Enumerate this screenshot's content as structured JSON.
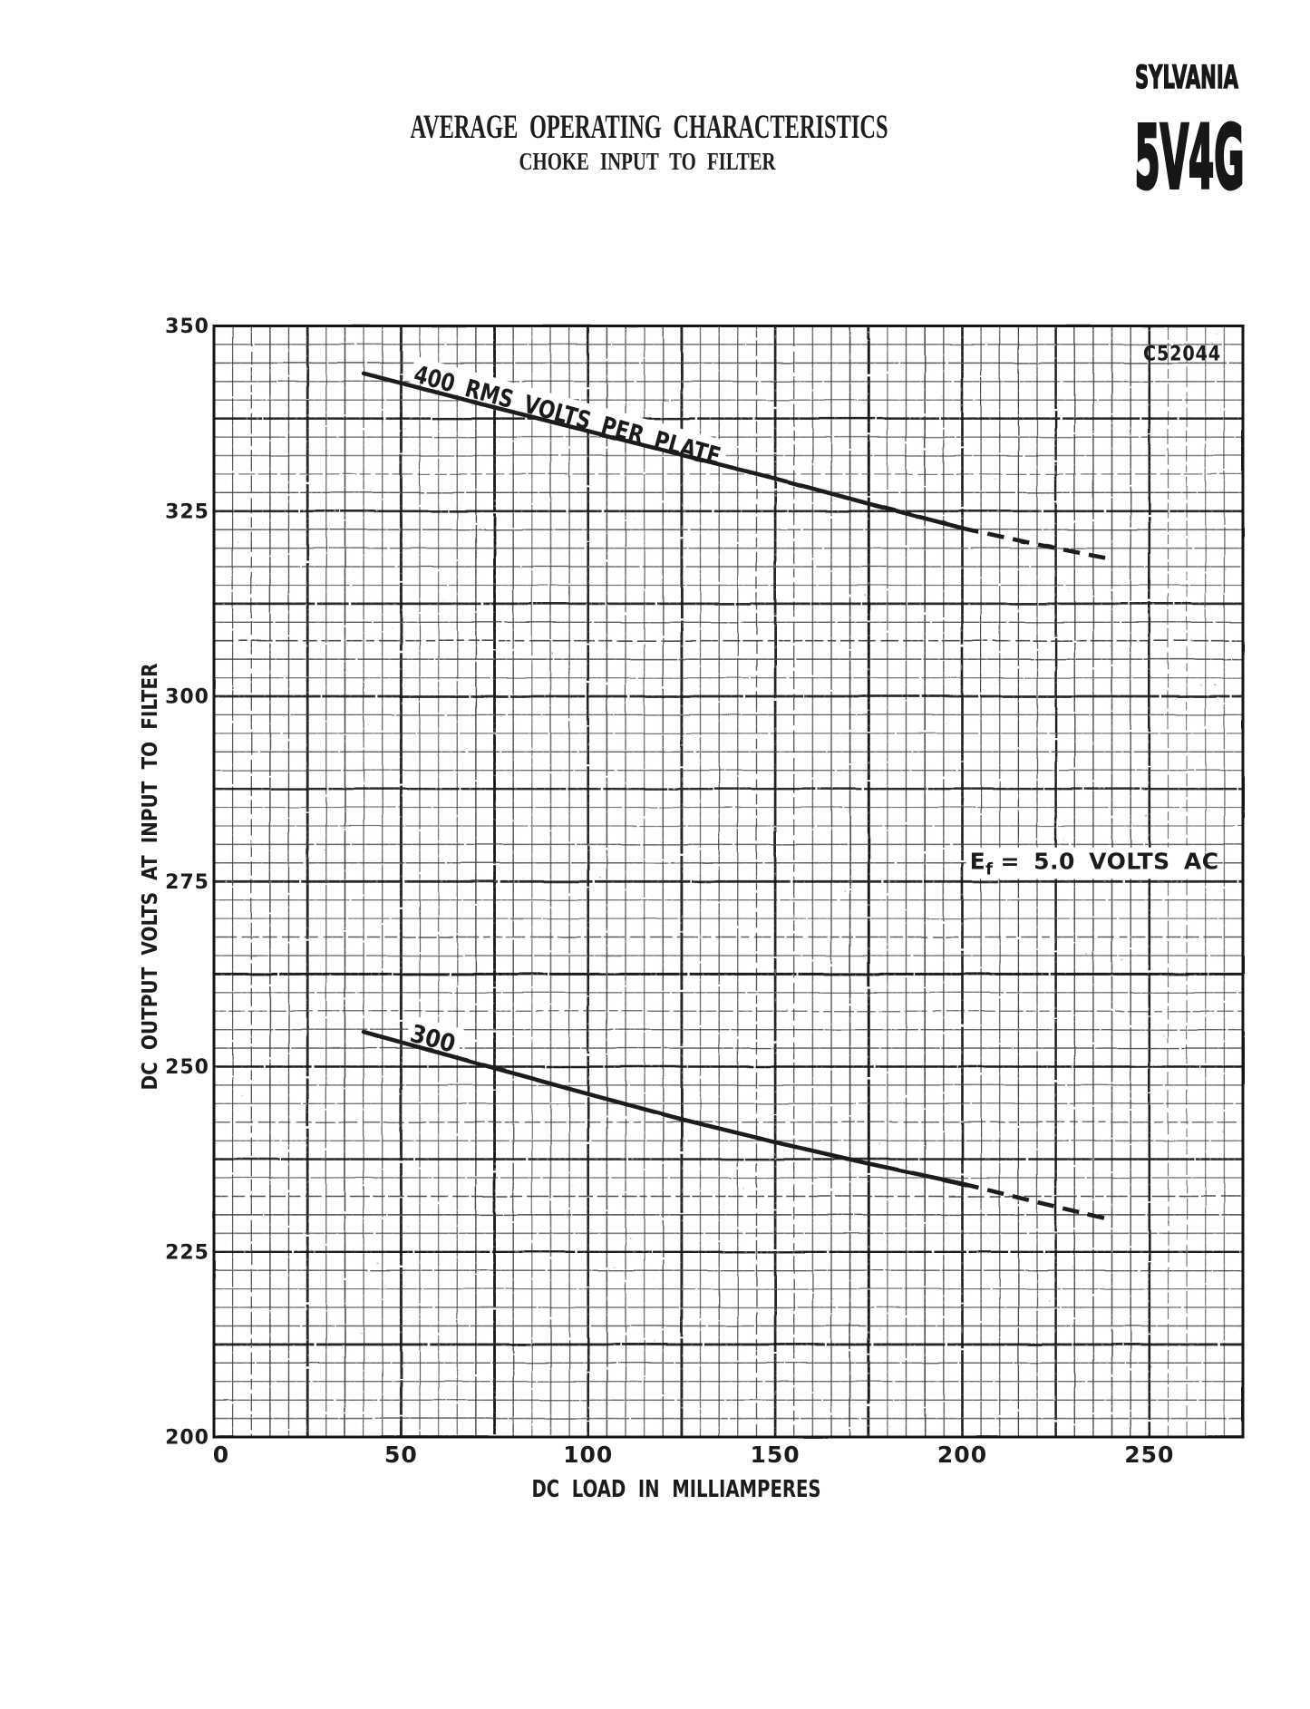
{
  "header": {
    "title": "AVERAGE OPERATING CHARACTERISTICS",
    "subtitle": "CHOKE INPUT TO FILTER",
    "brand": "SYLVANIA",
    "tube_type": "5V4G"
  },
  "chart_data": {
    "type": "line",
    "title": "AVERAGE OPERATING CHARACTERISTICS",
    "subtitle": "CHOKE INPUT TO FILTER",
    "xlabel": "DC LOAD IN MILLIAMPERES",
    "ylabel": "DC OUTPUT VOLTS AT INPUT TO FILTER",
    "xlim": [
      0,
      275
    ],
    "ylim": [
      200,
      350
    ],
    "x_ticks": [
      "0",
      "50",
      "100",
      "150",
      "200",
      "250"
    ],
    "x_tick_values": [
      0,
      50,
      100,
      150,
      200,
      250
    ],
    "y_ticks": [
      "200",
      "225",
      "250",
      "275",
      "300",
      "325",
      "350"
    ],
    "y_tick_values": [
      200,
      225,
      250,
      275,
      300,
      325,
      350
    ],
    "x_minor_step": 5,
    "x_major_step": 25,
    "y_minor_step": 2.5,
    "y_major_step": 12.5,
    "grid": "both",
    "legend_position": "none",
    "drawing_number": "C52044",
    "annotation": {
      "text": "Ef = 5.0 VOLTS AC",
      "base": "E",
      "sub": "f",
      "rest": "= 5.0 VOLTS AC"
    },
    "series": [
      {
        "name": "400 RMS volts per plate",
        "label": "400 RMS VOLTS PER PLATE",
        "solid_until_x": 200,
        "points": [
          [
            40,
            343.6
          ],
          [
            75,
            339.0
          ],
          [
            100,
            335.8
          ],
          [
            125,
            332.6
          ],
          [
            150,
            329.4
          ],
          [
            175,
            326.0
          ],
          [
            200,
            322.7
          ],
          [
            220,
            320.5
          ],
          [
            240,
            318.5
          ]
        ]
      },
      {
        "name": "300 RMS volts per plate",
        "label": "300",
        "solid_until_x": 200,
        "points": [
          [
            40,
            254.7
          ],
          [
            75,
            249.8
          ],
          [
            100,
            246.3
          ],
          [
            125,
            242.9
          ],
          [
            150,
            239.8
          ],
          [
            175,
            236.9
          ],
          [
            200,
            234.2
          ],
          [
            220,
            231.7
          ],
          [
            240,
            229.3
          ]
        ]
      }
    ],
    "colors": {
      "ink": "#1b1b1b",
      "grid_minor": "#3f3f3f",
      "grid_major": "#141414",
      "paper": "#ffffff"
    }
  }
}
